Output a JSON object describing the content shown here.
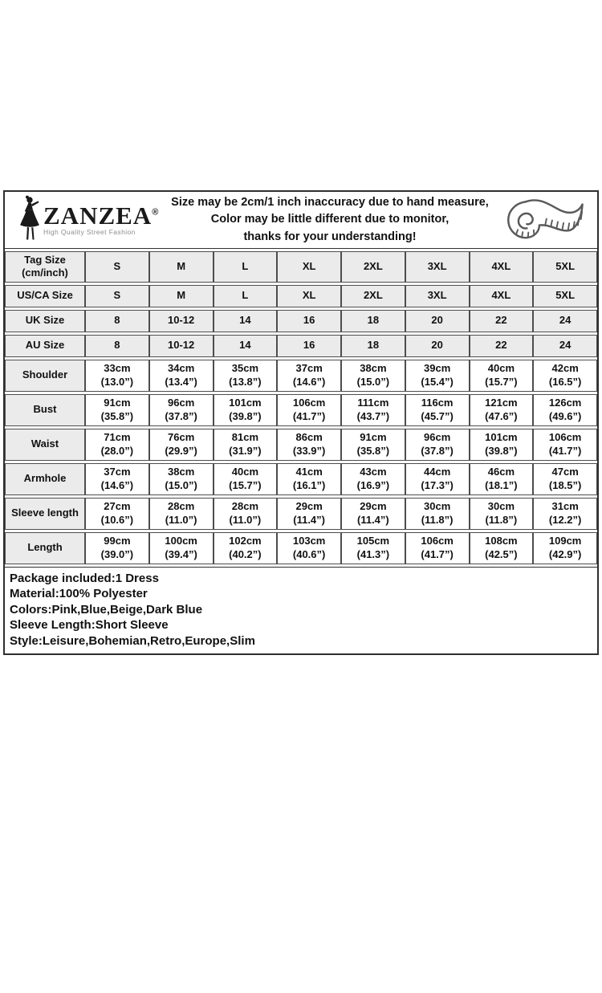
{
  "brand": {
    "name": "ZANZEA",
    "registered_mark": "®",
    "tagline": "High Quality Street Fashion",
    "logo_icon": "woman-silhouette-icon"
  },
  "header": {
    "disclaimer_lines": [
      "Size may be 2cm/1 inch inaccuracy due to hand measure,",
      "Color may be little different due to monitor,",
      "thanks for your understanding!"
    ],
    "right_icon": "measuring-tape-icon"
  },
  "size_table": {
    "columns": [
      "S",
      "M",
      "L",
      "XL",
      "2XL",
      "3XL",
      "4XL",
      "5XL"
    ],
    "rows": [
      {
        "label": "Tag Size\n(cm/inch)",
        "shaded": true,
        "cells": [
          "S",
          "M",
          "L",
          "XL",
          "2XL",
          "3XL",
          "4XL",
          "5XL"
        ]
      },
      {
        "label": "US/CA Size",
        "shaded": true,
        "cells": [
          "S",
          "M",
          "L",
          "XL",
          "2XL",
          "3XL",
          "4XL",
          "5XL"
        ]
      },
      {
        "label": "UK Size",
        "shaded": true,
        "cells": [
          "8",
          "10-12",
          "14",
          "16",
          "18",
          "20",
          "22",
          "24"
        ]
      },
      {
        "label": "AU Size",
        "shaded": true,
        "cells": [
          "8",
          "10-12",
          "14",
          "16",
          "18",
          "20",
          "22",
          "24"
        ]
      },
      {
        "label": "Shoulder",
        "shaded": false,
        "cells": [
          "33cm\n(13.0”)",
          "34cm\n(13.4”)",
          "35cm\n(13.8”)",
          "37cm\n(14.6”)",
          "38cm\n(15.0”)",
          "39cm\n(15.4”)",
          "40cm\n(15.7”)",
          "42cm\n(16.5”)"
        ]
      },
      {
        "label": "Bust",
        "shaded": false,
        "cells": [
          "91cm\n(35.8”)",
          "96cm\n(37.8”)",
          "101cm\n(39.8”)",
          "106cm\n(41.7”)",
          "111cm\n(43.7”)",
          "116cm\n(45.7”)",
          "121cm\n(47.6”)",
          "126cm\n(49.6”)"
        ]
      },
      {
        "label": "Waist",
        "shaded": false,
        "cells": [
          "71cm\n(28.0”)",
          "76cm\n(29.9”)",
          "81cm\n(31.9”)",
          "86cm\n(33.9”)",
          "91cm\n(35.8”)",
          "96cm\n(37.8”)",
          "101cm\n(39.8”)",
          "106cm\n(41.7”)"
        ]
      },
      {
        "label": "Armhole",
        "shaded": false,
        "cells": [
          "37cm\n(14.6”)",
          "38cm\n(15.0”)",
          "40cm\n(15.7”)",
          "41cm\n(16.1”)",
          "43cm\n(16.9”)",
          "44cm\n(17.3”)",
          "46cm\n(18.1”)",
          "47cm\n(18.5”)"
        ]
      },
      {
        "label": "Sleeve length",
        "shaded": false,
        "cells": [
          "27cm\n(10.6”)",
          "28cm\n(11.0”)",
          "28cm\n(11.0”)",
          "29cm\n(11.4”)",
          "29cm\n(11.4”)",
          "30cm\n(11.8”)",
          "30cm\n(11.8”)",
          "31cm\n(12.2”)"
        ]
      },
      {
        "label": "Length",
        "shaded": false,
        "cells": [
          "99cm\n(39.0”)",
          "100cm\n(39.4”)",
          "102cm\n(40.2”)",
          "103cm\n(40.6”)",
          "105cm\n(41.3”)",
          "106cm\n(41.7”)",
          "108cm\n(42.5”)",
          "109cm\n(42.9”)"
        ]
      }
    ]
  },
  "footer": {
    "lines": [
      "Package included:1 Dress",
      "Material:100% Polyester",
      "Colors:Pink,Blue,Beige,Dark Blue",
      "Sleeve Length:Short Sleeve",
      "Style:Leisure,Bohemian,Retro,Europe,Slim"
    ]
  },
  "colors": {
    "outer_border": "#2f2f2f",
    "grid_line": "#4d4d4d",
    "shaded_cell": "#ebebeb",
    "text": "#111111",
    "tagline_gray": "#8c8c8c"
  }
}
